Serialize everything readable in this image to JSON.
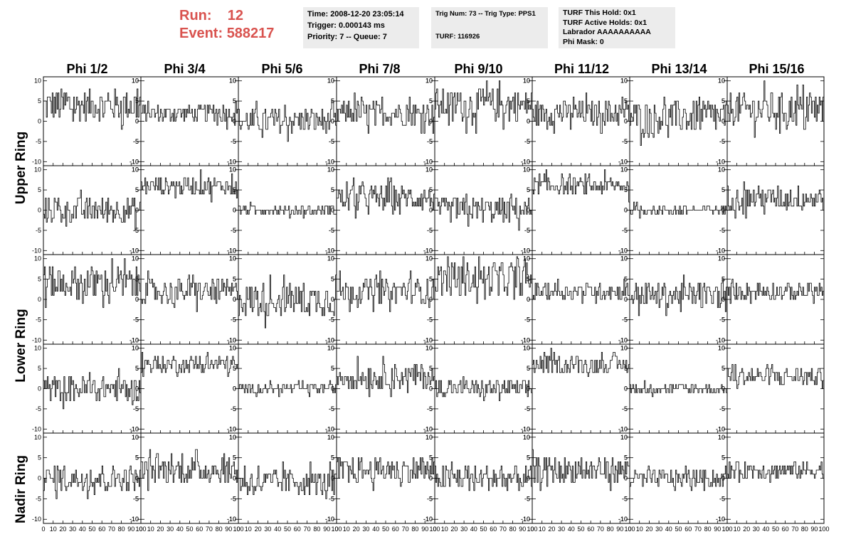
{
  "header": {
    "run_label": "Run:",
    "run_value": "12",
    "event_label": "Event:",
    "event_value": "588217"
  },
  "info_boxes": [
    {
      "lines": [
        "Time: 2008-12-20 23:05:14",
        "Trigger: 0.000143 ms",
        "Priority: 7 -- Queue: 7"
      ]
    },
    {
      "lines": [
        "Trig Num: 73 -- Trig Type: PPS1",
        "",
        "TURF: 116926"
      ]
    },
    {
      "lines": [
        "TURF This Hold: 0x1",
        "TURF Active Holds: 0x1",
        "Labrador AAAAAAAAAA",
        "Phi Mask: 0"
      ]
    }
  ],
  "column_titles": [
    "Phi 1/2",
    "Phi 3/4",
    "Phi 5/6",
    "Phi 7/8",
    "Phi 9/10",
    "Phi 11/12",
    "Phi 13/14",
    "Phi 15/16"
  ],
  "row_labels": [
    "Upper Ring",
    "Lower Ring",
    "Nadir Ring"
  ],
  "chart_data": {
    "type": "line",
    "rows": 5,
    "cols": 8,
    "xlim": [
      0,
      100
    ],
    "ylim": [
      -11,
      11
    ],
    "x_ticks": [
      0,
      10,
      20,
      30,
      40,
      50,
      60,
      70,
      80,
      90,
      100
    ],
    "y_ticks": [
      -10,
      -5,
      0,
      5,
      10
    ],
    "left_y_tick_labels": [
      "-10",
      "-5",
      "0",
      "5",
      "10"
    ],
    "right_y_tick_labels": [
      "-10",
      "-5",
      "0",
      "5",
      "10"
    ],
    "x_tick_labels": [
      "0",
      "10",
      "20",
      "30",
      "40",
      "50",
      "60",
      "70",
      "80",
      "90",
      "100"
    ],
    "line_color": "#000000",
    "panel_baselines": [
      [
        4,
        2,
        0,
        2,
        4,
        2,
        1,
        3
      ],
      [
        0,
        6,
        0,
        3,
        0,
        6,
        0,
        3
      ],
      [
        4,
        2,
        0,
        2,
        5,
        2,
        1,
        2
      ],
      [
        0,
        6,
        0,
        3,
        0,
        6,
        0,
        3
      ],
      [
        0,
        2,
        -1,
        2,
        0,
        2,
        0,
        2
      ]
    ],
    "panel_amplitudes": [
      [
        4,
        2,
        3,
        3,
        4,
        3,
        4,
        4
      ],
      [
        3,
        2,
        1,
        3,
        3,
        2,
        1,
        3
      ],
      [
        4,
        3,
        4,
        3,
        4,
        2,
        3,
        2
      ],
      [
        3,
        2,
        1,
        3,
        2,
        2,
        1,
        2
      ],
      [
        3,
        3,
        3,
        3,
        3,
        3,
        2,
        2
      ]
    ]
  }
}
